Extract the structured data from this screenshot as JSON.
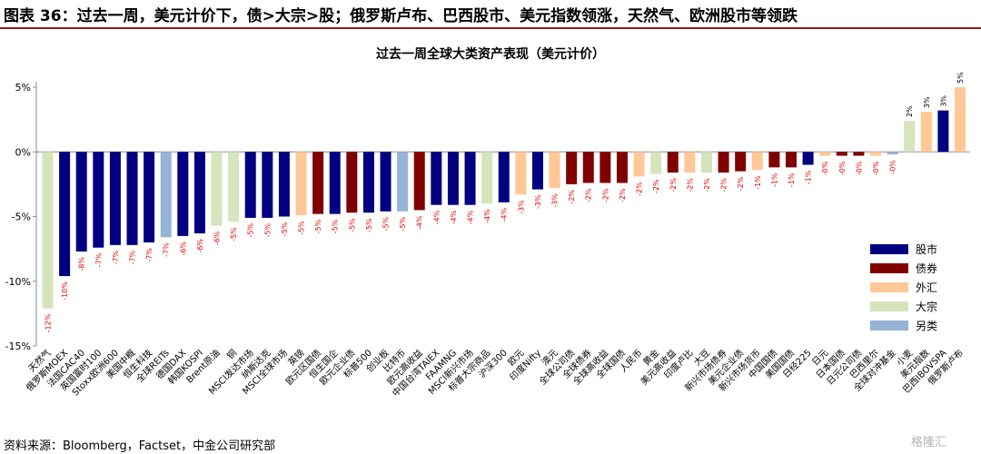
{
  "header": {
    "title": "图表 36：过去一周，美元计价下，债>大宗>股；俄罗斯卢布、巴西股市、美元指数领涨，天然气、欧洲股市等领跌"
  },
  "footer": {
    "source": "资料来源：Bloomberg，Factset，中金公司研究部",
    "watermark": "格隆汇"
  },
  "colors": {
    "股市": "#000080",
    "债券": "#800000",
    "外汇": "#FFC896",
    "大宗": "#D6E4BC",
    "另类": "#95B3D7",
    "title_rule": "#9a1b1b",
    "value_label": "#e60000"
  },
  "chart_data": {
    "type": "bar",
    "title": "过去一周全球大类资产表现（美元计价）",
    "ylim": [
      -15,
      5
    ],
    "yticks": [
      5,
      0,
      -5,
      -10,
      -15
    ],
    "ytick_labels": [
      "5%",
      "0%",
      "-5%",
      "-10%",
      "-15%"
    ],
    "grid": false,
    "legend_position": "right",
    "legend": [
      "股市",
      "债券",
      "外汇",
      "大宗",
      "另类"
    ],
    "categories": [
      "天然气",
      "俄罗斯MOEX",
      "法国CAC40",
      "英国富时100",
      "Stoxx欧洲600",
      "美国中概",
      "恒生科技",
      "全球REITs",
      "德国DAX",
      "韩国KOSPI",
      "Brent原油",
      "铜",
      "MSCI发达市场",
      "纳斯达克",
      "MSCI全球市场",
      "英镑",
      "欧元区国债",
      "恒生国企",
      "欧元企业债",
      "标普500",
      "创业板",
      "比特币",
      "欧元高收益",
      "中国台湾TAIEX",
      "FAAMNG",
      "MSCI新兴市场",
      "标普大宗商品",
      "沪深300",
      "欧元",
      "印度Nifty",
      "澳元",
      "全球公司债",
      "全球债券",
      "全球高收益",
      "全球国债",
      "人民币",
      "黄金",
      "美元高收益",
      "印度卢比",
      "大豆",
      "新兴市场债券",
      "美元企业债",
      "新兴市场货币",
      "中国国债",
      "美国国债",
      "日经225",
      "日元",
      "日本国债",
      "日元公司债",
      "巴西里尔",
      "全球对冲基金",
      "小麦",
      "美元指数",
      "巴西IBOVSPA",
      "俄罗斯卢布"
    ],
    "values": [
      -12.1,
      -9.6,
      -7.7,
      -7.4,
      -7.2,
      -7.2,
      -7.0,
      -6.6,
      -6.5,
      -6.3,
      -5.7,
      -5.4,
      -5.1,
      -5.1,
      -5.0,
      -4.9,
      -4.8,
      -4.8,
      -4.7,
      -4.7,
      -4.6,
      -4.6,
      -4.5,
      -4.1,
      -4.1,
      -4.1,
      -4.0,
      -3.9,
      -3.3,
      -2.9,
      -2.8,
      -2.5,
      -2.4,
      -2.4,
      -2.4,
      -1.9,
      -1.7,
      -1.6,
      -1.6,
      -1.6,
      -1.6,
      -1.5,
      -1.4,
      -1.2,
      -1.2,
      -1.0,
      -0.3,
      -0.3,
      -0.3,
      -0.3,
      -0.2,
      2.4,
      3.1,
      3.2,
      5.0
    ],
    "value_labels": [
      "-12%",
      "-10%",
      "-8%",
      "-7%",
      "-7%",
      "-7%",
      "-7%",
      "-7%",
      "-6%",
      "-6%",
      "-6%",
      "-5%",
      "-5%",
      "-5%",
      "-5%",
      "-5%",
      "-5%",
      "-5%",
      "-5%",
      "-5%",
      "-5%",
      "-5%",
      "-4%",
      "-4%",
      "-4%",
      "-4%",
      "-4%",
      "-4%",
      "-3%",
      "-3%",
      "-3%",
      "-2%",
      "-2%",
      "-2%",
      "-2%",
      "-2%",
      "-2%",
      "-2%",
      "-2%",
      "-2%",
      "-2%",
      "-2%",
      "-1%",
      "-1%",
      "-1%",
      "-1%",
      "-0%",
      "-0%",
      "-0%",
      "-0%",
      "-0%",
      "2%",
      "3%",
      "3%",
      "5%"
    ],
    "groups": [
      "大宗",
      "股市",
      "股市",
      "股市",
      "股市",
      "股市",
      "股市",
      "另类",
      "股市",
      "股市",
      "大宗",
      "大宗",
      "股市",
      "股市",
      "股市",
      "外汇",
      "债券",
      "股市",
      "债券",
      "股市",
      "股市",
      "另类",
      "债券",
      "股市",
      "股市",
      "股市",
      "大宗",
      "股市",
      "外汇",
      "股市",
      "外汇",
      "债券",
      "债券",
      "债券",
      "债券",
      "外汇",
      "大宗",
      "债券",
      "外汇",
      "大宗",
      "债券",
      "债券",
      "外汇",
      "债券",
      "债券",
      "股市",
      "外汇",
      "债券",
      "债券",
      "外汇",
      "另类",
      "大宗",
      "外汇",
      "股市",
      "外汇"
    ]
  }
}
